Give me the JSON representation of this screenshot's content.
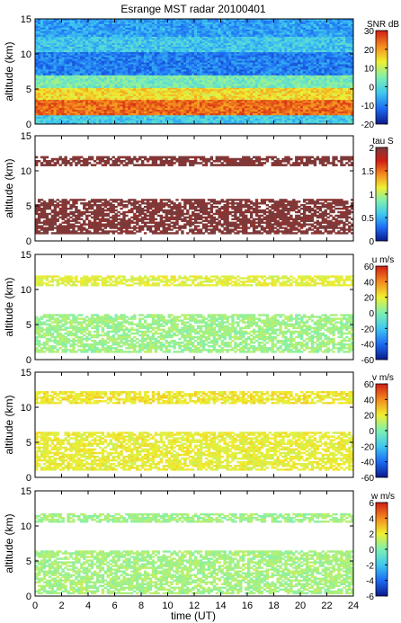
{
  "chart_data": {
    "type": "heatmap",
    "title": "Esrange MST radar 20100401",
    "xlabel": "time (UT)",
    "x_ticks": [
      "0",
      "2",
      "4",
      "6",
      "8",
      "10",
      "12",
      "14",
      "16",
      "18",
      "20",
      "22",
      "24"
    ],
    "xlim": [
      0,
      24
    ],
    "panels": [
      {
        "name": "snr",
        "ylabel": "altitude (km)",
        "ylim": [
          0,
          15
        ],
        "y_ticks": [
          "0",
          "5",
          "10",
          "15"
        ],
        "colorbar_label": "SNR dB",
        "colorbar_range": [
          -20,
          30
        ],
        "colorbar_ticks": [
          "30",
          "20",
          "10",
          "0",
          "-10",
          "-20"
        ],
        "colors": [
          "#0b1a8c",
          "#1c6cf5",
          "#3fc8f0",
          "#7ef0b0",
          "#f0f030",
          "#f58a1e",
          "#d21e14"
        ],
        "layers": [
          {
            "alt_range": [
              0,
              1.3
            ],
            "level": 0.35
          },
          {
            "alt_range": [
              1.3,
              3.5
            ],
            "level": 0.88
          },
          {
            "alt_range": [
              3.5,
              5.2
            ],
            "level": 0.7
          },
          {
            "alt_range": [
              5.2,
              7.0
            ],
            "level": 0.48
          },
          {
            "alt_range": [
              7.0,
              10.3
            ],
            "level": 0.2
          },
          {
            "alt_range": [
              10.3,
              12.5
            ],
            "level": 0.34
          },
          {
            "alt_range": [
              12.5,
              15
            ],
            "level": 0.26
          }
        ]
      },
      {
        "name": "tau",
        "ylabel": "altitude (km)",
        "ylim": [
          0,
          15
        ],
        "y_ticks": [
          "0",
          "5",
          "10",
          "15"
        ],
        "colorbar_label": "tau S",
        "colorbar_range": [
          0,
          2
        ],
        "colorbar_ticks": [
          "2",
          "1.5",
          "1",
          "0.5",
          "0"
        ],
        "colors": [
          "#0b1a8c",
          "#1c6cf5",
          "#3fc8f0",
          "#7ef0b0",
          "#f0f030",
          "#f58a1e",
          "#d21e14",
          "#7a3a3a"
        ],
        "layers": [
          {
            "alt_range": [
              1.0,
              6.0
            ],
            "level": 1.0
          },
          {
            "alt_range": [
              10.7,
              12.1
            ],
            "level": 1.0
          }
        ]
      },
      {
        "name": "u",
        "ylabel": "altitude (km)",
        "ylim": [
          0,
          15
        ],
        "y_ticks": [
          "0",
          "5",
          "10",
          "15"
        ],
        "colorbar_label": "u m/s",
        "colorbar_range": [
          -60,
          60
        ],
        "colorbar_ticks": [
          "60",
          "40",
          "20",
          "0",
          "-20",
          "-40",
          "-60"
        ],
        "colors": [
          "#0b1a8c",
          "#1c6cf5",
          "#3fc8f0",
          "#7ef0b0",
          "#f0f030",
          "#f58a1e",
          "#d21e14"
        ],
        "layers": [
          {
            "alt_range": [
              1.0,
              6.5
            ],
            "level": 0.55
          },
          {
            "alt_range": [
              10.5,
              12.0
            ],
            "level": 0.65
          }
        ]
      },
      {
        "name": "v",
        "ylabel": "altitude (km)",
        "ylim": [
          0,
          15
        ],
        "y_ticks": [
          "0",
          "5",
          "10",
          "15"
        ],
        "colorbar_label": "v m/s",
        "colorbar_range": [
          -60,
          60
        ],
        "colorbar_ticks": [
          "60",
          "40",
          "20",
          "0",
          "-20",
          "-40",
          "-60"
        ],
        "colors": [
          "#0b1a8c",
          "#1c6cf5",
          "#3fc8f0",
          "#7ef0b0",
          "#f0f030",
          "#f58a1e",
          "#d21e14"
        ],
        "layers": [
          {
            "alt_range": [
              1.0,
              6.5
            ],
            "level": 0.66
          },
          {
            "alt_range": [
              10.5,
              12.3
            ],
            "level": 0.68
          }
        ]
      },
      {
        "name": "w",
        "ylabel": "altitude (km)",
        "ylim": [
          0,
          15
        ],
        "y_ticks": [
          "0",
          "5",
          "10",
          "15"
        ],
        "colorbar_label": "w m/s",
        "colorbar_range": [
          -6,
          6
        ],
        "colorbar_ticks": [
          "6",
          "4",
          "2",
          "0",
          "-2",
          "-4",
          "-6"
        ],
        "colors": [
          "#0b1a8c",
          "#1c6cf5",
          "#3fc8f0",
          "#7ef0b0",
          "#f0f030",
          "#f58a1e",
          "#d21e14"
        ],
        "layers": [
          {
            "alt_range": [
              0.3,
              6.5
            ],
            "level": 0.56
          },
          {
            "alt_range": [
              10.5,
              11.8
            ],
            "level": 0.55
          }
        ]
      }
    ]
  }
}
